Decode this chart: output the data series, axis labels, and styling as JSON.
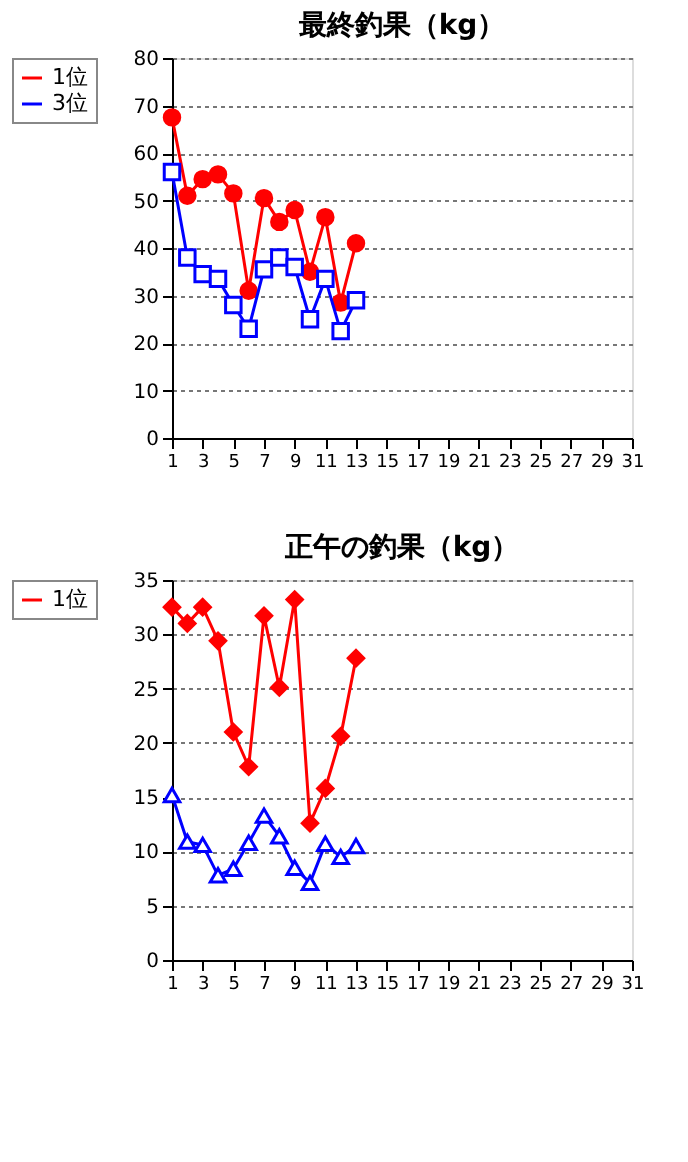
{
  "chart_data": [
    {
      "type": "line",
      "title": "最終釣果（kg）",
      "x": [
        1,
        2,
        3,
        4,
        5,
        6,
        7,
        8,
        9,
        10,
        11,
        12,
        13
      ],
      "xlim": [
        1,
        31
      ],
      "xticks": [
        1,
        3,
        5,
        7,
        9,
        11,
        13,
        15,
        17,
        19,
        21,
        23,
        25,
        27,
        29,
        31
      ],
      "ylim": [
        0,
        80
      ],
      "yticks": [
        0,
        10,
        20,
        30,
        40,
        50,
        60,
        70,
        80
      ],
      "grid": "y",
      "legend": "left",
      "series": [
        {
          "name": "1位",
          "color": "#ff0000",
          "marker": "circle",
          "values": [
            67.5,
            51,
            54.5,
            55.5,
            51.5,
            31,
            50.5,
            45.5,
            48,
            35,
            46.5,
            28.5,
            41
          ]
        },
        {
          "name": "3位",
          "color": "#0000ff",
          "marker": "square",
          "values": [
            56,
            38,
            34.5,
            33.5,
            28,
            23,
            35.5,
            38,
            36,
            25,
            33.5,
            22.5,
            29
          ]
        }
      ]
    },
    {
      "type": "line",
      "title": "正午の釣果（kg）",
      "x": [
        1,
        2,
        3,
        4,
        5,
        6,
        7,
        8,
        9,
        10,
        11,
        12,
        13
      ],
      "xlim": [
        1,
        31
      ],
      "xticks": [
        1,
        3,
        5,
        7,
        9,
        11,
        13,
        15,
        17,
        19,
        21,
        23,
        25,
        27,
        29,
        31
      ],
      "ylim": [
        0,
        35
      ],
      "yticks": [
        0,
        5,
        10,
        15,
        20,
        25,
        30,
        35
      ],
      "grid": "y",
      "legend": "left",
      "series": [
        {
          "name": "1位",
          "color": "#ff0000",
          "marker": "diamond",
          "values": [
            32.5,
            31,
            32.5,
            29.4,
            21,
            17.8,
            31.7,
            25.1,
            33.2,
            12.6,
            15.8,
            20.6,
            27.8
          ]
        },
        {
          "color": "#0000ff",
          "marker": "triangle",
          "values": [
            15.2,
            10.9,
            10.6,
            7.8,
            8.4,
            10.8,
            13.3,
            11.4,
            8.5,
            7.1,
            10.7,
            9.5,
            10.5
          ]
        }
      ]
    }
  ]
}
